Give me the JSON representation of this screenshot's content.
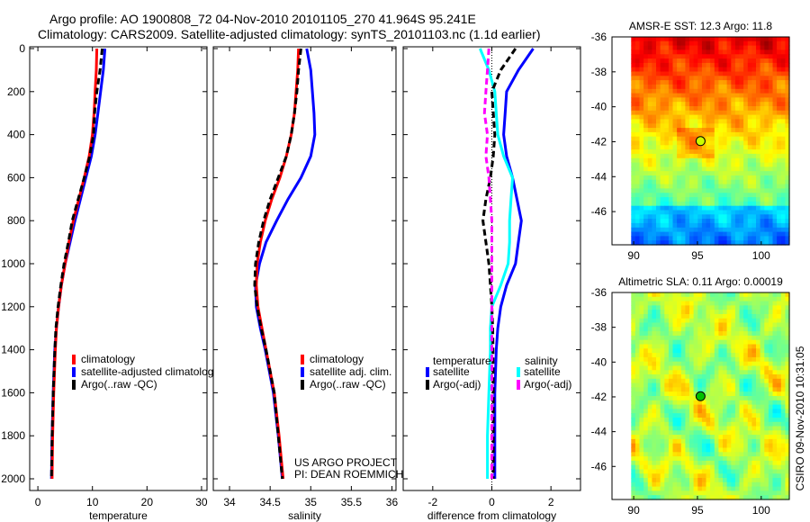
{
  "title_line1": "Argo profile: AO 1900808_72 04-Nov-2010 20101105_270 41.964S 95.241E",
  "title_line2": "Climatology: CARS2009. Satellite-adjusted climatology: synTS_20101103.nc (1.1d earlier)",
  "side_label": "CSIRO 09-Nov-2010 10:31:05",
  "credit": [
    "US ARGO PROJECT",
    "PI: DEAN ROEMMICH"
  ],
  "colors": {
    "climatology": "#ff0000",
    "satellite": "#0000ff",
    "argo": "#000000",
    "sal_satellite": "#00ffff",
    "sal_argo": "#ff00ff"
  },
  "chart_data": [
    {
      "type": "line",
      "xlabel": "temperature",
      "xlim": [
        -1.5,
        31
      ],
      "ylim": [
        2000,
        0
      ],
      "xticks": [
        "0",
        "10",
        "20",
        "30"
      ],
      "xtick_values": [
        0,
        10,
        20,
        30
      ],
      "yticks": [
        "0",
        "200",
        "400",
        "600",
        "800",
        "1000",
        "1200",
        "1400",
        "1600",
        "1800",
        "2000"
      ],
      "depth": [
        0,
        100,
        200,
        300,
        400,
        500,
        600,
        700,
        800,
        900,
        1000,
        1100,
        1200,
        1300,
        1400,
        1600,
        1800,
        2000
      ],
      "legend": [
        "climatology",
        "satellite-adjusted climatolog",
        "Argo(..raw -QC)"
      ],
      "series": [
        {
          "name": "satellite-adjusted climatology",
          "color": "#0000ff",
          "values": [
            12.3,
            12,
            11.5,
            11,
            10.5,
            9.8,
            8.8,
            7.8,
            6.8,
            5.9,
            5,
            4.3,
            3.8,
            3.4,
            3.1,
            2.8,
            2.6,
            2.5
          ]
        },
        {
          "name": "climatology",
          "color": "#ff0000",
          "values": [
            10.8,
            10.7,
            10.5,
            10.3,
            10,
            9.4,
            8.5,
            7.5,
            6.5,
            5.7,
            5,
            4.3,
            3.8,
            3.4,
            3.2,
            2.9,
            2.7,
            2.6
          ]
        },
        {
          "name": "Argo(..raw -QC)",
          "color": "#000000",
          "values": [
            11.8,
            11.4,
            10.8,
            10.4,
            10.2,
            9.5,
            8.5,
            7.4,
            6.3,
            5.6,
            4.8,
            4.2,
            3.7,
            3.3,
            3.1,
            2.8,
            2.6,
            2.5
          ]
        }
      ]
    },
    {
      "type": "line",
      "xlabel": "salinity",
      "xlim": [
        33.8,
        36.05
      ],
      "ylim": [
        2000,
        0
      ],
      "xticks": [
        "34",
        "34.5",
        "35",
        "35.5",
        "36"
      ],
      "xtick_values": [
        34,
        34.5,
        35,
        35.5,
        36
      ],
      "depth": [
        0,
        100,
        200,
        300,
        400,
        500,
        600,
        700,
        800,
        900,
        1000,
        1100,
        1200,
        1300,
        1400,
        1600,
        1800,
        2000
      ],
      "legend": [
        "climatology",
        "satellite adj. clim.",
        "Argo(..raw -QC)"
      ],
      "series": [
        {
          "name": "satellite adj. clim.",
          "color": "#0000ff",
          "values": [
            34.95,
            35.0,
            35.02,
            35.04,
            35.05,
            35.0,
            34.88,
            34.72,
            34.58,
            34.45,
            34.37,
            34.32,
            34.33,
            34.38,
            34.44,
            34.54,
            34.6,
            34.65
          ]
        },
        {
          "name": "climatology",
          "color": "#ff0000",
          "values": [
            34.85,
            34.84,
            34.82,
            34.8,
            34.76,
            34.7,
            34.62,
            34.52,
            34.44,
            34.38,
            34.34,
            34.33,
            34.35,
            34.4,
            34.45,
            34.55,
            34.61,
            34.66
          ]
        },
        {
          "name": "Argo(..raw -QC)",
          "color": "#000000",
          "values": [
            34.88,
            34.85,
            34.83,
            34.8,
            34.76,
            34.7,
            34.6,
            34.5,
            34.42,
            34.36,
            34.32,
            34.31,
            34.34,
            34.39,
            34.45,
            34.55,
            34.6,
            34.65
          ]
        }
      ]
    },
    {
      "type": "line",
      "xlabel": "difference from climatology",
      "xlim": [
        -3,
        3
      ],
      "ylim": [
        2000,
        0
      ],
      "xticks": [
        "-2",
        "0",
        "2"
      ],
      "xtick_values": [
        -2,
        0,
        2
      ],
      "depth": [
        0,
        100,
        200,
        300,
        400,
        500,
        600,
        700,
        800,
        900,
        1000,
        1100,
        1200,
        1300,
        1400,
        1600,
        1800,
        2000
      ],
      "legend_headers": [
        "temperature",
        "salinity"
      ],
      "legend": [
        "satellite",
        "Argo(-adj)",
        "satellite",
        "Argo(-adj)"
      ],
      "series": [
        {
          "name": "temperature satellite",
          "color": "#0000ff",
          "values": [
            1.4,
            0.9,
            0.5,
            0.45,
            0.4,
            0.5,
            0.7,
            0.85,
            1.0,
            0.9,
            0.8,
            0.5,
            0.3,
            0.2,
            0.15,
            0.1,
            0.1,
            0.1
          ]
        },
        {
          "name": "salinity satellite",
          "color": "#00ffff",
          "values": [
            -0.4,
            -0.1,
            0.1,
            0.15,
            0.2,
            0.4,
            0.7,
            0.65,
            0.6,
            0.6,
            0.55,
            0.3,
            0.0,
            -0.05,
            -0.05,
            -0.1,
            -0.15,
            -0.15
          ]
        },
        {
          "name": "temperature Argo(-adj)",
          "color": "#000000",
          "values": [
            0.8,
            0.3,
            0.0,
            0.05,
            0.1,
            0.05,
            -0.05,
            -0.2,
            -0.3,
            -0.2,
            -0.1,
            -0.05,
            0.0,
            0.03,
            0.04,
            0.05,
            0.05,
            0.05
          ]
        },
        {
          "name": "salinity Argo(-adj)",
          "color": "#ff00ff",
          "values": [
            -0.1,
            -0.15,
            -0.2,
            -0.25,
            -0.15,
            -0.2,
            -0.1,
            -0.05,
            0.0,
            0.0,
            0.0,
            0.0,
            0.0,
            0.0,
            0.0,
            0.0,
            0.0,
            0.0
          ]
        }
      ]
    },
    {
      "type": "heatmap",
      "title": "AMSR-E SST: 12.3 Argo: 11.8",
      "xticks": [
        "90",
        "95",
        "100"
      ],
      "yticks": [
        "-36",
        "-38",
        "-40",
        "-42",
        "-44",
        "-46"
      ],
      "xlim": [
        88.3,
        102.2
      ],
      "ylim": [
        -47.9,
        -36
      ],
      "argo_location": [
        95.241,
        -41.964
      ]
    },
    {
      "type": "heatmap",
      "title": "Altimetric SLA: 0.11 Argo: 0.00019",
      "xticks": [
        "90",
        "95",
        "100"
      ],
      "yticks": [
        "-36",
        "-38",
        "-40",
        "-42",
        "-44",
        "-46"
      ],
      "xlim": [
        88.3,
        102.2
      ],
      "ylim": [
        -47.9,
        -36
      ],
      "argo_location": [
        95.241,
        -41.964
      ]
    }
  ]
}
